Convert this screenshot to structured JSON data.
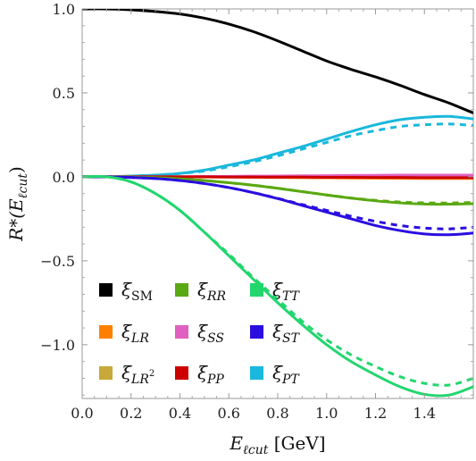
{
  "chart_data": {
    "type": "line",
    "title": "",
    "xlabel": {
      "main": "E",
      "sub": "ℓcut",
      "unit": "[GeV]"
    },
    "ylabel": {
      "main": "R*(E",
      "sub": "ℓcut",
      "close": ")"
    },
    "xlim": [
      0.0,
      1.6
    ],
    "ylim": [
      -1.32,
      1.0
    ],
    "xticks": [
      "0.0",
      "0.2",
      "0.4",
      "0.6",
      "0.8",
      "1.0",
      "1.2",
      "1.4"
    ],
    "yticks": [
      "1.0",
      "0.5",
      "0.0",
      "−0.5",
      "−1.0"
    ],
    "xtick_values": [
      0.0,
      0.2,
      0.4,
      0.6,
      0.8,
      1.0,
      1.2,
      1.4
    ],
    "ytick_values": [
      1.0,
      0.5,
      0.0,
      -0.5,
      -1.0
    ],
    "grid": false,
    "legend_position": "bottom-left",
    "x": [
      0.0,
      0.1,
      0.2,
      0.3,
      0.4,
      0.5,
      0.6,
      0.7,
      0.8,
      0.9,
      1.0,
      1.1,
      1.2,
      1.3,
      1.4,
      1.5,
      1.6
    ],
    "series": [
      {
        "name": "ξSM",
        "color": "#000000",
        "style": "solid",
        "values": [
          1.0,
          1.0,
          0.995,
          0.985,
          0.97,
          0.945,
          0.91,
          0.865,
          0.81,
          0.75,
          0.69,
          0.64,
          0.595,
          0.545,
          0.49,
          0.44,
          0.38
        ]
      },
      {
        "name": "ξPT",
        "color": "#1ab8dc",
        "style": "solid",
        "values": [
          0.0,
          0.0,
          0.005,
          0.01,
          0.02,
          0.04,
          0.07,
          0.1,
          0.14,
          0.18,
          0.225,
          0.27,
          0.31,
          0.34,
          0.355,
          0.36,
          0.345
        ]
      },
      {
        "name": "ξPT",
        "color": "#1ab8dc",
        "style": "dashed",
        "values": [
          0.0,
          0.0,
          0.005,
          0.01,
          0.02,
          0.035,
          0.06,
          0.09,
          0.125,
          0.165,
          0.205,
          0.245,
          0.275,
          0.3,
          0.31,
          0.315,
          0.305
        ]
      },
      {
        "name": "ξLR",
        "color": "#ff8000",
        "style": "solid",
        "values": [
          0.0,
          0.0,
          0.0,
          0.0,
          0.0,
          -0.001,
          -0.002,
          -0.003,
          -0.004,
          -0.005,
          -0.006,
          -0.007,
          -0.008,
          -0.009,
          -0.01,
          -0.01,
          -0.01
        ]
      },
      {
        "name": "ξSS",
        "color": "#e060c0",
        "style": "solid",
        "values": [
          0.0,
          0.0,
          0.0,
          0.0,
          0.001,
          0.002,
          0.003,
          0.004,
          0.005,
          0.006,
          0.007,
          0.008,
          0.009,
          0.01,
          0.01,
          0.01,
          0.01
        ]
      },
      {
        "name": "ξPP",
        "color": "#cc0000",
        "style": "solid",
        "values": [
          0.0,
          0.0,
          0.0,
          0.0,
          0.0,
          0.0,
          -0.001,
          -0.001,
          -0.002,
          -0.002,
          -0.003,
          -0.003,
          -0.004,
          -0.004,
          -0.005,
          -0.005,
          -0.005
        ]
      },
      {
        "name": "ξRR",
        "color": "#5aa812",
        "style": "solid",
        "values": [
          0.0,
          0.0,
          -0.002,
          -0.005,
          -0.012,
          -0.022,
          -0.035,
          -0.05,
          -0.068,
          -0.088,
          -0.108,
          -0.127,
          -0.143,
          -0.155,
          -0.162,
          -0.163,
          -0.16
        ]
      },
      {
        "name": "ξRR",
        "color": "#5aa812",
        "style": "dashed",
        "values": [
          0.0,
          0.0,
          -0.002,
          -0.005,
          -0.012,
          -0.022,
          -0.035,
          -0.05,
          -0.068,
          -0.088,
          -0.108,
          -0.126,
          -0.14,
          -0.15,
          -0.155,
          -0.156,
          -0.152
        ]
      },
      {
        "name": "ξST",
        "color": "#2a0ee0",
        "style": "solid",
        "values": [
          0.0,
          0.0,
          -0.004,
          -0.01,
          -0.022,
          -0.04,
          -0.064,
          -0.094,
          -0.13,
          -0.17,
          -0.21,
          -0.25,
          -0.29,
          -0.32,
          -0.34,
          -0.345,
          -0.335
        ]
      },
      {
        "name": "ξST",
        "color": "#2a0ee0",
        "style": "dashed",
        "values": [
          0.0,
          0.0,
          -0.004,
          -0.01,
          -0.022,
          -0.04,
          -0.064,
          -0.094,
          -0.128,
          -0.165,
          -0.2,
          -0.235,
          -0.265,
          -0.29,
          -0.305,
          -0.31,
          -0.3
        ]
      },
      {
        "name": "ξTT",
        "color": "#22d66e",
        "style": "solid",
        "values": [
          0.0,
          0.0,
          -0.03,
          -0.1,
          -0.2,
          -0.33,
          -0.47,
          -0.61,
          -0.75,
          -0.88,
          -1.0,
          -1.1,
          -1.18,
          -1.25,
          -1.295,
          -1.3,
          -1.25
        ]
      },
      {
        "name": "ξTT",
        "color": "#22d66e",
        "style": "dashed",
        "values": [
          0.0,
          0.0,
          -0.03,
          -0.1,
          -0.2,
          -0.33,
          -0.46,
          -0.6,
          -0.73,
          -0.86,
          -0.97,
          -1.06,
          -1.13,
          -1.19,
          -1.23,
          -1.24,
          -1.2
        ]
      }
    ],
    "legend": [
      {
        "main": "ξ",
        "sub": "SM",
        "sub_upright": true,
        "sup": "",
        "color": "#000000"
      },
      {
        "main": "ξ",
        "sub": "LR",
        "sub_upright": false,
        "sup": "",
        "color": "#ff8000"
      },
      {
        "main": "ξ",
        "sub": "LR",
        "sub_upright": false,
        "sup": "2",
        "color": "#c8a838"
      },
      {
        "main": "ξ",
        "sub": "RR",
        "sub_upright": false,
        "sup": "",
        "color": "#5aa812"
      },
      {
        "main": "ξ",
        "sub": "SS",
        "sub_upright": false,
        "sup": "",
        "color": "#e060c0"
      },
      {
        "main": "ξ",
        "sub": "PP",
        "sub_upright": false,
        "sup": "",
        "color": "#cc0000"
      },
      {
        "main": "ξ",
        "sub": "TT",
        "sub_upright": false,
        "sup": "",
        "color": "#22d66e"
      },
      {
        "main": "ξ",
        "sub": "ST",
        "sub_upright": false,
        "sup": "",
        "color": "#2a0ee0"
      },
      {
        "main": "ξ",
        "sub": "PT",
        "sub_upright": false,
        "sup": "",
        "color": "#1ab8dc"
      }
    ]
  }
}
